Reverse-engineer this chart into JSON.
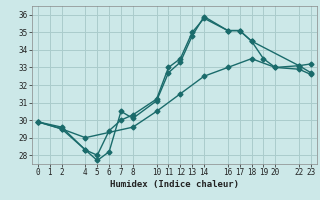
{
  "xlabel": "Humidex (Indice chaleur)",
  "bg_color": "#cce8e8",
  "grid_color": "#aacccc",
  "line_color": "#1a6b6b",
  "xlim": [
    -0.5,
    23.5
  ],
  "ylim": [
    27.5,
    36.5
  ],
  "xticks": [
    0,
    1,
    2,
    4,
    5,
    6,
    7,
    8,
    10,
    11,
    12,
    13,
    14,
    16,
    17,
    18,
    19,
    20,
    22,
    23
  ],
  "yticks": [
    28,
    29,
    30,
    31,
    32,
    33,
    34,
    35,
    36
  ],
  "line1_x": [
    0,
    2,
    4,
    5,
    6,
    7,
    8,
    10,
    11,
    12,
    13,
    14,
    16,
    17,
    18,
    22,
    23
  ],
  "line1_y": [
    29.9,
    29.6,
    28.3,
    27.7,
    28.2,
    30.5,
    30.1,
    31.1,
    32.7,
    33.3,
    34.8,
    35.9,
    35.1,
    35.1,
    34.5,
    33.1,
    32.7
  ],
  "line2_x": [
    0,
    2,
    4,
    5,
    6,
    7,
    8,
    10,
    11,
    12,
    13,
    14,
    16,
    17,
    18,
    19,
    20,
    22,
    23
  ],
  "line2_y": [
    29.9,
    29.5,
    28.3,
    28.0,
    29.4,
    30.0,
    30.3,
    31.2,
    33.0,
    33.5,
    35.0,
    35.8,
    35.1,
    35.1,
    34.5,
    33.5,
    33.0,
    33.1,
    33.2
  ],
  "line3_x": [
    0,
    2,
    4,
    8,
    10,
    12,
    14,
    16,
    18,
    20,
    22,
    23
  ],
  "line3_y": [
    29.9,
    29.5,
    29.0,
    29.6,
    30.5,
    31.5,
    32.5,
    33.0,
    33.5,
    33.0,
    32.9,
    32.6
  ]
}
